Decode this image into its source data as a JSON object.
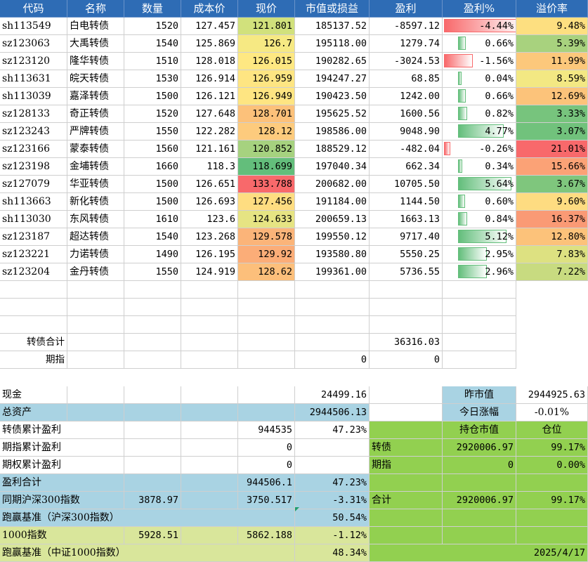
{
  "headers": [
    "代码",
    "名称",
    "数量",
    "成本价",
    "现价",
    "市值或损益",
    "盈利",
    "盈利%",
    "溢价率"
  ],
  "rows": [
    {
      "code": "sh113549",
      "name": "白电转债",
      "qty": "1520",
      "cost": "127.457",
      "price": "121.801",
      "mv": "185137.52",
      "pnl": "-8597.12",
      "pct": "-4.44%",
      "prem": "9.48%",
      "pct_val": -4.44,
      "price_color": "#d1e17c",
      "prem_color": "#fddf80"
    },
    {
      "code": "sz123063",
      "name": "大禹转债",
      "qty": "1540",
      "cost": "125.869",
      "price": "126.7",
      "mv": "195118.00",
      "pnl": "1279.74",
      "pct": "0.66%",
      "prem": "5.39%",
      "pct_val": 0.66,
      "price_color": "#f6e983",
      "prem_color": "#a8d27e"
    },
    {
      "code": "sz123120",
      "name": "隆华转债",
      "qty": "1510",
      "cost": "128.018",
      "price": "126.015",
      "mv": "190282.65",
      "pnl": "-3024.53",
      "pct": "-1.56%",
      "prem": "11.99%",
      "pct_val": -1.56,
      "price_color": "#fee882",
      "prem_color": "#fcc87b"
    },
    {
      "code": "sh113631",
      "name": "皖天转债",
      "qty": "1530",
      "cost": "126.914",
      "price": "126.959",
      "mv": "194247.27",
      "pnl": "68.85",
      "pct": "0.04%",
      "prem": "8.59%",
      "pct_val": 0.04,
      "price_color": "#fee582",
      "prem_color": "#f3e883"
    },
    {
      "code": "sh113039",
      "name": "嘉泽转债",
      "qty": "1500",
      "cost": "126.121",
      "price": "126.949",
      "mv": "190423.50",
      "pnl": "1242.00",
      "pct": "0.66%",
      "prem": "12.69%",
      "pct_val": 0.66,
      "price_color": "#fee582",
      "prem_color": "#fcc37a"
    },
    {
      "code": "sz128133",
      "name": "奇正转债",
      "qty": "1520",
      "cost": "127.648",
      "price": "128.701",
      "mv": "195625.52",
      "pnl": "1600.56",
      "pct": "0.82%",
      "prem": "3.33%",
      "pct_val": 0.82,
      "price_color": "#fcc17a",
      "prem_color": "#77c47d"
    },
    {
      "code": "sz123243",
      "name": "严牌转债",
      "qty": "1550",
      "cost": "122.282",
      "price": "128.12",
      "mv": "198586.00",
      "pnl": "9048.90",
      "pct": "4.77%",
      "prem": "3.07%",
      "pct_val": 4.77,
      "price_color": "#fdcb7d",
      "prem_color": "#71c27c"
    },
    {
      "code": "sz123166",
      "name": "蒙泰转债",
      "qty": "1560",
      "cost": "121.161",
      "price": "120.852",
      "mv": "188529.12",
      "pnl": "-482.04",
      "pct": "-0.26%",
      "prem": "21.01%",
      "pct_val": -0.26,
      "price_color": "#a6d27f",
      "prem_color": "#f8696b"
    },
    {
      "code": "sz123198",
      "name": "金埔转债",
      "qty": "1660",
      "cost": "118.3",
      "price": "118.699",
      "mv": "197040.34",
      "pnl": "662.34",
      "pct": "0.34%",
      "prem": "15.66%",
      "pct_val": 0.34,
      "price_color": "#63be7b",
      "prem_color": "#fba276"
    },
    {
      "code": "sz127079",
      "name": "华亚转债",
      "qty": "1500",
      "cost": "126.651",
      "price": "133.788",
      "mv": "200682.00",
      "pnl": "10705.50",
      "pct": "5.64%",
      "prem": "3.67%",
      "pct_val": 5.64,
      "price_color": "#f8696b",
      "prem_color": "#7fc67d"
    },
    {
      "code": "sh113663",
      "name": "新化转债",
      "qty": "1500",
      "cost": "126.693",
      "price": "127.456",
      "mv": "191184.00",
      "pnl": "1144.50",
      "pct": "0.60%",
      "prem": "9.60%",
      "pct_val": 0.6,
      "price_color": "#fedd81",
      "prem_color": "#fedc81"
    },
    {
      "code": "sh113030",
      "name": "东风转债",
      "qty": "1610",
      "cost": "123.6",
      "price": "124.633",
      "mv": "200659.13",
      "pnl": "1663.13",
      "pct": "0.84%",
      "prem": "16.37%",
      "pct_val": 0.84,
      "price_color": "#e6e483",
      "prem_color": "#fa9a75"
    },
    {
      "code": "sz123187",
      "name": "超达转债",
      "qty": "1540",
      "cost": "123.268",
      "price": "129.578",
      "mv": "199550.12",
      "pnl": "9717.40",
      "pct": "5.12%",
      "prem": "12.80%",
      "pct_val": 5.12,
      "price_color": "#fbb479",
      "prem_color": "#fcc27a"
    },
    {
      "code": "sz123221",
      "name": "力诺转债",
      "qty": "1490",
      "cost": "126.195",
      "price": "129.92",
      "mv": "193580.80",
      "pnl": "5550.25",
      "pct": "2.95%",
      "prem": "7.83%",
      "pct_val": 2.95,
      "price_color": "#fbad78",
      "prem_color": "#dde181"
    },
    {
      "code": "sz123204",
      "name": "金丹转债",
      "qty": "1550",
      "cost": "124.919",
      "price": "128.62",
      "mv": "199361.00",
      "pnl": "5736.55",
      "pct": "2.96%",
      "prem": "7.22%",
      "pct_val": 2.96,
      "price_color": "#fcbf7b",
      "prem_color": "#c8db80"
    }
  ],
  "subtotal": {
    "label_cb": "转债合计",
    "cb_pnl": "36316.03",
    "label_fut": "期指",
    "fut_mv": "0",
    "fut_pnl": "0"
  },
  "summary": {
    "cash_label": "现金",
    "cash": "24499.16",
    "yesterday_label": "昨市值",
    "yesterday": "2944925.63",
    "assets_label": "总资产",
    "assets": "2944506.13",
    "change_label": "今日涨幅",
    "change": "-0.01%",
    "cb_cum_label": "转债累计盈利",
    "cb_cum": "944535",
    "cb_cum_pct": "47.23%",
    "pos_mv_label": "持仓市值",
    "pos_ratio_label": "仓位",
    "fut_cum_label": "期指累计盈利",
    "fut_cum": "0",
    "pos_cb_label": "转债",
    "pos_cb_mv": "2920006.97",
    "pos_cb_ratio": "99.17%",
    "opt_cum_label": "期权累计盈利",
    "opt_cum": "0",
    "pos_fut_label": "期指",
    "pos_fut_mv": "0",
    "pos_fut_ratio": "0.00%",
    "total_label": "盈利合计",
    "total": "944506.1",
    "total_pct": "47.23%",
    "hs300_label": "同期沪深300指数",
    "hs300_a": "3878.97",
    "hs300_b": "3750.517",
    "hs300_pct": "-3.31%",
    "pos_total_label": "合计",
    "pos_total_mv": "2920006.97",
    "pos_total_ratio": "99.17%",
    "beat300_label": "跑赢基准（沪深300指数）",
    "beat300": "50.54%",
    "i1000_label": "1000指数",
    "i1000_a": "5928.51",
    "i1000_b": "5862.188",
    "i1000_pct": "-1.12%",
    "beat1000_label": "跑赢基准（中证1000指数）",
    "beat1000": "48.34%",
    "date": "2025/4/17"
  },
  "colors": {
    "header": "#2e6cb5",
    "blue": "#a9d3e3",
    "green": "#92d050",
    "yellow": "#d9e69b",
    "bar_pos": "#63be7b",
    "bar_neg": "#f8696b"
  }
}
